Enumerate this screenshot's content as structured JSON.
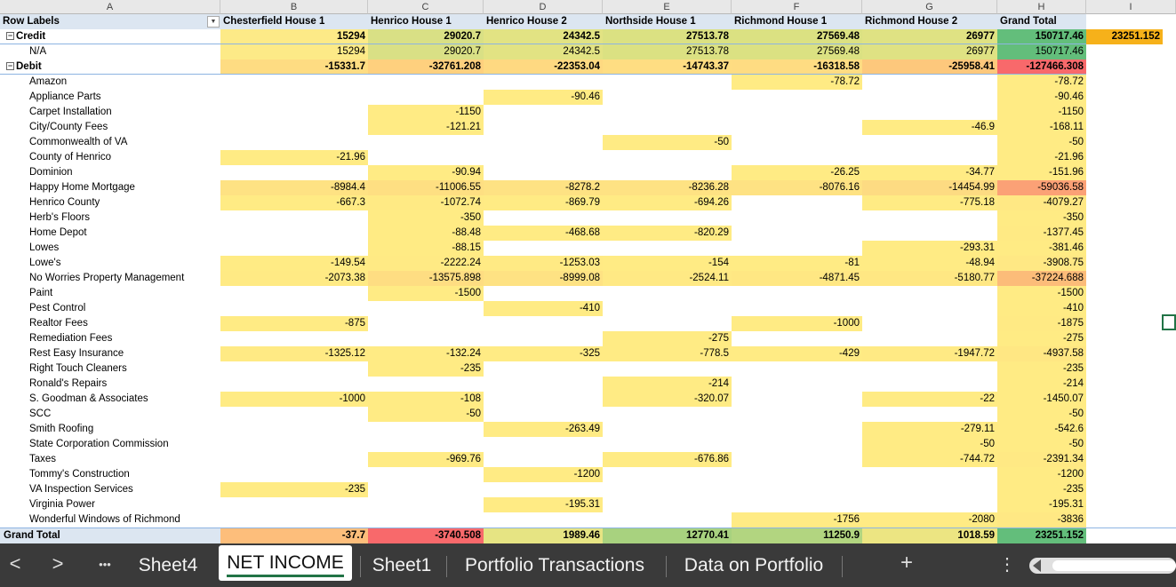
{
  "columns": [
    {
      "letter": "A"
    },
    {
      "letter": "B"
    },
    {
      "letter": "C"
    },
    {
      "letter": "D"
    },
    {
      "letter": "E"
    },
    {
      "letter": "F"
    },
    {
      "letter": "G"
    },
    {
      "letter": "H"
    },
    {
      "letter": "I"
    }
  ],
  "pivot_header": [
    "Row Labels",
    "Chesterfield House 1",
    "Henrico House 1",
    "Henrico House 2",
    "Northside House 1",
    "Richmond House 1",
    "Richmond House 2",
    "Grand Total"
  ],
  "rows": [
    {
      "label": "Credit",
      "kind": "group",
      "values": [
        "15294",
        "29020.7",
        "24342.5",
        "27513.78",
        "27569.48",
        "26977",
        "150717.46"
      ],
      "colors": [
        "#fdea87",
        "#d9e085",
        "#e2e383",
        "#dbe182",
        "#dbe182",
        "#dfe283",
        "#63be7b"
      ],
      "extra": "23251.152"
    },
    {
      "label": "N/A",
      "kind": "item",
      "values": [
        "15294",
        "29020.7",
        "24342.5",
        "27513.78",
        "27569.48",
        "26977",
        "150717.46"
      ],
      "colors": [
        "#fdea87",
        "#d9e085",
        "#e2e383",
        "#dbe182",
        "#dbe182",
        "#dfe283",
        "#63be7b"
      ]
    },
    {
      "label": "Debit",
      "kind": "group",
      "values": [
        "-15331.7",
        "-32761.208",
        "-22353.04",
        "-14743.37",
        "-16318.58",
        "-25958.41",
        "-127466.308"
      ],
      "colors": [
        "#fedc82",
        "#fed07e",
        "#fed981",
        "#fedd82",
        "#fedc82",
        "#fdc87c",
        "#f8696b"
      ]
    },
    {
      "label": "Amazon",
      "kind": "item",
      "values": [
        "",
        "",
        "",
        "",
        "-78.72",
        "",
        "-78.72"
      ],
      "colors": [
        "",
        "",
        "",
        "",
        "#ffeb84",
        "",
        "#ffeb84"
      ]
    },
    {
      "label": "Appliance Parts",
      "kind": "item",
      "values": [
        "",
        "",
        "-90.46",
        "",
        "",
        "",
        "-90.46"
      ],
      "colors": [
        "",
        "",
        "#ffeb84",
        "",
        "",
        "",
        "#ffeb84"
      ]
    },
    {
      "label": "Carpet Installation",
      "kind": "item",
      "values": [
        "",
        "-1150",
        "",
        "",
        "",
        "",
        "-1150"
      ],
      "colors": [
        "",
        "#ffeb84",
        "",
        "",
        "",
        "",
        "#ffeb84"
      ]
    },
    {
      "label": "City/County Fees",
      "kind": "item",
      "values": [
        "",
        "-121.21",
        "",
        "",
        "",
        "-46.9",
        "-168.11"
      ],
      "colors": [
        "",
        "#ffeb84",
        "",
        "",
        "",
        "#ffeb84",
        "#ffeb84"
      ]
    },
    {
      "label": "Commonwealth of VA",
      "kind": "item",
      "values": [
        "",
        "",
        "",
        "-50",
        "",
        "",
        "-50"
      ],
      "colors": [
        "",
        "",
        "",
        "#ffeb84",
        "",
        "",
        "#ffeb84"
      ]
    },
    {
      "label": "County of Henrico",
      "kind": "item",
      "values": [
        "-21.96",
        "",
        "",
        "",
        "",
        "",
        "-21.96"
      ],
      "colors": [
        "#ffeb84",
        "",
        "",
        "",
        "",
        "",
        "#ffeb84"
      ]
    },
    {
      "label": "Dominion",
      "kind": "item",
      "values": [
        "",
        "-90.94",
        "",
        "",
        "-26.25",
        "-34.77",
        "-151.96"
      ],
      "colors": [
        "",
        "#ffeb84",
        "",
        "",
        "#ffeb84",
        "#ffeb84",
        "#ffeb84"
      ]
    },
    {
      "label": "Happy Home Mortgage",
      "kind": "item",
      "values": [
        "-8984.4",
        "-11006.55",
        "-8278.2",
        "-8236.28",
        "-8076.16",
        "-14454.99",
        "-59036.58"
      ],
      "colors": [
        "#fee283",
        "#fedf82",
        "#fee283",
        "#fee283",
        "#fee283",
        "#fddb82",
        "#fba176"
      ]
    },
    {
      "label": "Henrico County",
      "kind": "item",
      "values": [
        "-667.3",
        "-1072.74",
        "-869.79",
        "-694.26",
        "",
        "-775.18",
        "-4079.27"
      ],
      "colors": [
        "#ffeb84",
        "#ffea84",
        "#ffeb84",
        "#ffeb84",
        "",
        "#ffeb84",
        "#ffe884"
      ]
    },
    {
      "label": "Herb's Floors",
      "kind": "item",
      "values": [
        "",
        "-350",
        "",
        "",
        "",
        "",
        "-350"
      ],
      "colors": [
        "",
        "#ffeb84",
        "",
        "",
        "",
        "",
        "#ffeb84"
      ]
    },
    {
      "label": "Home Depot",
      "kind": "item",
      "values": [
        "",
        "-88.48",
        "-468.68",
        "-820.29",
        "",
        "",
        "-1377.45"
      ],
      "colors": [
        "",
        "#ffeb84",
        "#ffeb84",
        "#ffeb84",
        "",
        "",
        "#ffea84"
      ]
    },
    {
      "label": "Lowes",
      "kind": "item",
      "values": [
        "",
        "-88.15",
        "",
        "",
        "",
        "-293.31",
        "-381.46"
      ],
      "colors": [
        "",
        "#ffeb84",
        "",
        "",
        "",
        "#ffeb84",
        "#ffeb84"
      ]
    },
    {
      "label": "Lowe's",
      "kind": "item",
      "values": [
        "-149.54",
        "-2222.24",
        "-1253.03",
        "-154",
        "-81",
        "-48.94",
        "-3908.75"
      ],
      "colors": [
        "#ffeb84",
        "#ffea84",
        "#ffea84",
        "#ffeb84",
        "#ffeb84",
        "#ffeb84",
        "#ffe884"
      ]
    },
    {
      "label": "No Worries Property Management",
      "kind": "item",
      "values": [
        "-2073.38",
        "-13575.898",
        "-8999.08",
        "-2524.11",
        "-4871.45",
        "-5180.77",
        "-37224.688"
      ],
      "colors": [
        "#ffea84",
        "#fedd82",
        "#fee283",
        "#ffe984",
        "#ffe783",
        "#ffe783",
        "#fcbc79"
      ]
    },
    {
      "label": "Paint",
      "kind": "item",
      "values": [
        "",
        "-1500",
        "",
        "",
        "",
        "",
        "-1500"
      ],
      "colors": [
        "",
        "#ffeb84",
        "",
        "",
        "",
        "",
        "#ffeb84"
      ]
    },
    {
      "label": "Pest Control",
      "kind": "item",
      "values": [
        "",
        "",
        "-410",
        "",
        "",
        "",
        "-410"
      ],
      "colors": [
        "",
        "",
        "#ffeb84",
        "",
        "",
        "",
        "#ffeb84"
      ]
    },
    {
      "label": "Realtor Fees",
      "kind": "item",
      "values": [
        "-875",
        "",
        "",
        "",
        "-1000",
        "",
        "-1875"
      ],
      "colors": [
        "#ffeb84",
        "",
        "",
        "",
        "#ffeb84",
        "",
        "#ffea84"
      ]
    },
    {
      "label": "Remediation Fees",
      "kind": "item",
      "values": [
        "",
        "",
        "",
        "-275",
        "",
        "",
        "-275"
      ],
      "colors": [
        "",
        "",
        "",
        "#ffeb84",
        "",
        "",
        "#ffeb84"
      ]
    },
    {
      "label": "Rest Easy Insurance",
      "kind": "item",
      "values": [
        "-1325.12",
        "-132.24",
        "-325",
        "-778.5",
        "-429",
        "-1947.72",
        "-4937.58"
      ],
      "colors": [
        "#ffea84",
        "#ffeb84",
        "#ffeb84",
        "#ffeb84",
        "#ffeb84",
        "#ffea84",
        "#ffe783"
      ]
    },
    {
      "label": "Right Touch Cleaners",
      "kind": "item",
      "values": [
        "",
        "-235",
        "",
        "",
        "",
        "",
        "-235"
      ],
      "colors": [
        "",
        "#ffeb84",
        "",
        "",
        "",
        "",
        "#ffeb84"
      ]
    },
    {
      "label": "Ronald's Repairs",
      "kind": "item",
      "values": [
        "",
        "",
        "",
        "-214",
        "",
        "",
        "-214"
      ],
      "colors": [
        "",
        "",
        "",
        "#ffeb84",
        "",
        "",
        "#ffeb84"
      ]
    },
    {
      "label": "S. Goodman & Associates",
      "kind": "item",
      "values": [
        "-1000",
        "-108",
        "",
        "-320.07",
        "",
        "-22",
        "-1450.07"
      ],
      "colors": [
        "#ffeb84",
        "#ffeb84",
        "",
        "#ffeb84",
        "",
        "#ffeb84",
        "#ffeb84"
      ]
    },
    {
      "label": "SCC",
      "kind": "item",
      "values": [
        "",
        "-50",
        "",
        "",
        "",
        "",
        "-50"
      ],
      "colors": [
        "",
        "#ffeb84",
        "",
        "",
        "",
        "",
        "#ffeb84"
      ]
    },
    {
      "label": "Smith Roofing",
      "kind": "item",
      "values": [
        "",
        "",
        "-263.49",
        "",
        "",
        "-279.11",
        "-542.6"
      ],
      "colors": [
        "",
        "",
        "#ffeb84",
        "",
        "",
        "#ffeb84",
        "#ffeb84"
      ]
    },
    {
      "label": "State Corporation Commission",
      "kind": "item",
      "values": [
        "",
        "",
        "",
        "",
        "",
        "-50",
        "-50"
      ],
      "colors": [
        "",
        "",
        "",
        "",
        "",
        "#ffeb84",
        "#ffeb84"
      ]
    },
    {
      "label": "Taxes",
      "kind": "item",
      "values": [
        "",
        "-969.76",
        "",
        "-676.86",
        "",
        "-744.72",
        "-2391.34"
      ],
      "colors": [
        "",
        "#ffeb84",
        "",
        "#ffeb84",
        "",
        "#ffeb84",
        "#ffe984"
      ]
    },
    {
      "label": "Tommy's Construction",
      "kind": "item",
      "values": [
        "",
        "",
        "-1200",
        "",
        "",
        "",
        "-1200"
      ],
      "colors": [
        "",
        "",
        "#ffeb84",
        "",
        "",
        "",
        "#ffeb84"
      ]
    },
    {
      "label": "VA Inspection Services",
      "kind": "item",
      "values": [
        "-235",
        "",
        "",
        "",
        "",
        "",
        "-235"
      ],
      "colors": [
        "#ffeb84",
        "",
        "",
        "",
        "",
        "",
        "#ffeb84"
      ]
    },
    {
      "label": "Virginia Power",
      "kind": "item",
      "values": [
        "",
        "",
        "-195.31",
        "",
        "",
        "",
        "-195.31"
      ],
      "colors": [
        "",
        "",
        "#ffeb84",
        "",
        "",
        "",
        "#ffeb84"
      ]
    },
    {
      "label": "Wonderful Windows of Richmond",
      "kind": "item",
      "values": [
        "",
        "",
        "",
        "",
        "-1756",
        "-2080",
        "-3836"
      ],
      "colors": [
        "",
        "",
        "",
        "",
        "#ffeb84",
        "#ffeb84",
        "#ffe884"
      ]
    },
    {
      "label": "Grand Total",
      "kind": "total",
      "values": [
        "-37.7",
        "-3740.508",
        "1989.46",
        "12770.41",
        "11250.9",
        "1018.59",
        "23251.152"
      ],
      "colors": [
        "#fdbe7b",
        "#f8696b",
        "#e6e483",
        "#a8d27f",
        "#b2d580",
        "#ece582",
        "#63be7b"
      ]
    }
  ],
  "tabs": {
    "nav_prev": "<",
    "nav_next": ">",
    "more": "•••",
    "sheets": [
      "Sheet4",
      "NET INCOME",
      "Sheet1",
      "Portfolio Transactions",
      "Data on Portfolio"
    ],
    "active": "NET INCOME",
    "add": "+",
    "options": "⋮"
  },
  "icons": {
    "expand": "minus-box-icon",
    "filter": "dropdown-arrow-icon"
  }
}
